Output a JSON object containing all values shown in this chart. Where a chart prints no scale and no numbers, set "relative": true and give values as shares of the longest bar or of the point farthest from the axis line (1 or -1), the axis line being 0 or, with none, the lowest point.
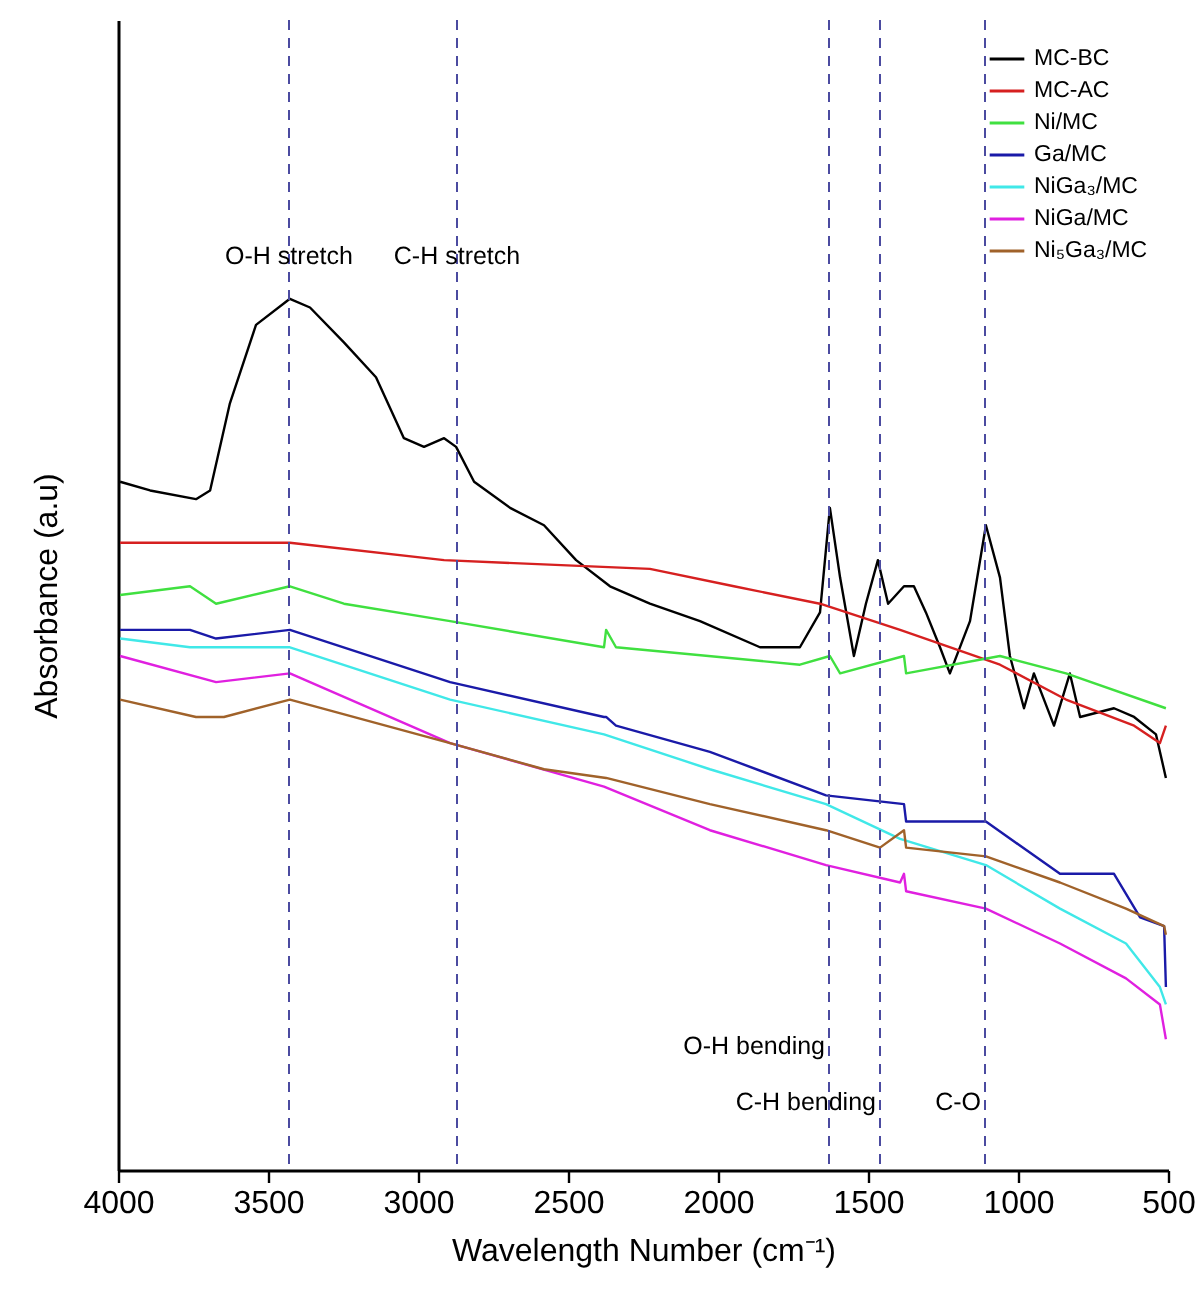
{
  "chart_data": {
    "type": "line",
    "relative": true,
    "xlabel": "Wavelength Number (cm⁻¹)",
    "ylabel": "Absorbance (a.u)",
    "xlim": [
      4000,
      500
    ],
    "xticks": [
      4000,
      3500,
      3000,
      2500,
      2000,
      1500,
      1000,
      500
    ],
    "legend": "top right",
    "line_style": "solid",
    "series": [
      {
        "name": "MC-BC",
        "color": "#000000",
        "x": [
          3993,
          3893,
          3740,
          3693,
          3627,
          3540,
          3427,
          3360,
          3247,
          3140,
          3047,
          2980,
          2913,
          2873,
          2813,
          2693,
          2580,
          2473,
          2360,
          2227,
          2060,
          1860,
          1727,
          1660,
          1627,
          1593,
          1547,
          1507,
          1467,
          1433,
          1380,
          1347,
          1307,
          1260,
          1227,
          1160,
          1107,
          1060,
          1027,
          980,
          947,
          880,
          827,
          793,
          680,
          613,
          540,
          507
        ],
        "values": [
          0.79,
          0.78,
          0.77,
          0.78,
          0.88,
          0.97,
          1,
          0.99,
          0.95,
          0.91,
          0.84,
          0.83,
          0.84,
          0.83,
          0.79,
          0.76,
          0.74,
          0.7,
          0.67,
          0.65,
          0.63,
          0.6,
          0.6,
          0.64,
          0.76,
          0.68,
          0.59,
          0.65,
          0.7,
          0.65,
          0.67,
          0.67,
          0.64,
          0.6,
          0.57,
          0.63,
          0.74,
          0.68,
          0.59,
          0.53,
          0.57,
          0.51,
          0.57,
          0.52,
          0.53,
          0.52,
          0.5,
          0.45
        ]
      },
      {
        "name": "MC-AC",
        "color": "#d62020",
        "x": [
          3993,
          3427,
          2913,
          2227,
          1947,
          1660,
          1393,
          1060,
          840,
          613,
          527,
          507
        ],
        "values": [
          0.72,
          0.72,
          0.7,
          0.69,
          0.67,
          0.65,
          0.62,
          0.58,
          0.54,
          0.51,
          0.49,
          0.51
        ]
      },
      {
        "name": "Ni/MC",
        "color": "#40e040",
        "x": [
          3993,
          3760,
          3673,
          3427,
          3247,
          2893,
          2380,
          2373,
          2340,
          1727,
          1627,
          1593,
          1380,
          1373,
          1060,
          840,
          507
        ],
        "values": [
          0.66,
          0.67,
          0.65,
          0.67,
          0.65,
          0.63,
          0.6,
          0.62,
          0.6,
          0.58,
          0.59,
          0.57,
          0.59,
          0.57,
          0.59,
          0.57,
          0.53
        ]
      },
      {
        "name": "Ga/MC",
        "color": "#1a1aa8",
        "x": [
          3993,
          3760,
          3673,
          3427,
          2893,
          2380,
          2373,
          2340,
          2027,
          1640,
          1380,
          1373,
          1107,
          860,
          680,
          593,
          513,
          507
        ],
        "values": [
          0.62,
          0.62,
          0.61,
          0.62,
          0.56,
          0.52,
          0.52,
          0.51,
          0.48,
          0.43,
          0.42,
          0.4,
          0.4,
          0.34,
          0.34,
          0.29,
          0.28,
          0.21
        ]
      },
      {
        "name": "NiGa₃/MC",
        "color": "#40e8e8",
        "x": [
          3993,
          3760,
          3427,
          2893,
          2380,
          2027,
          1640,
          1393,
          1107,
          860,
          640,
          527,
          507
        ],
        "values": [
          0.61,
          0.6,
          0.6,
          0.54,
          0.5,
          0.46,
          0.42,
          0.38,
          0.35,
          0.3,
          0.26,
          0.21,
          0.19
        ]
      },
      {
        "name": "NiGa/MC",
        "color": "#e020e0",
        "x": [
          3993,
          3673,
          3427,
          2893,
          2380,
          2027,
          1640,
          1393,
          1380,
          1373,
          1107,
          860,
          640,
          527,
          507
        ],
        "values": [
          0.59,
          0.56,
          0.57,
          0.49,
          0.44,
          0.39,
          0.35,
          0.33,
          0.34,
          0.32,
          0.3,
          0.26,
          0.22,
          0.19,
          0.15
        ]
      },
      {
        "name": "Ni₅Ga₃/MC",
        "color": "#a0622a",
        "x": [
          3993,
          3740,
          3647,
          3427,
          2893,
          2580,
          2373,
          2027,
          1640,
          1460,
          1380,
          1373,
          1107,
          860,
          640,
          513,
          507
        ],
        "values": [
          0.54,
          0.52,
          0.52,
          0.54,
          0.49,
          0.46,
          0.45,
          0.42,
          0.39,
          0.37,
          0.39,
          0.37,
          0.36,
          0.33,
          0.3,
          0.28,
          0.27
        ]
      }
    ],
    "ref_lines": [
      {
        "axis": "x",
        "value": 3430,
        "label": "O-H stretch",
        "color": "#4b4ba0",
        "line_style": "dashed"
      },
      {
        "axis": "x",
        "value": 2870,
        "label": "C-H stretch",
        "color": "#4b4ba0",
        "line_style": "dashed"
      },
      {
        "axis": "x",
        "value": 1630,
        "label": "O-H bending",
        "color": "#4b4ba0",
        "line_style": "dashed"
      },
      {
        "axis": "x",
        "value": 1460,
        "label": "C-H bending",
        "color": "#4b4ba0",
        "line_style": "dashed"
      },
      {
        "axis": "x",
        "value": 1110,
        "label": "C-O",
        "color": "#4b4ba0",
        "line_style": "dashed"
      }
    ]
  }
}
